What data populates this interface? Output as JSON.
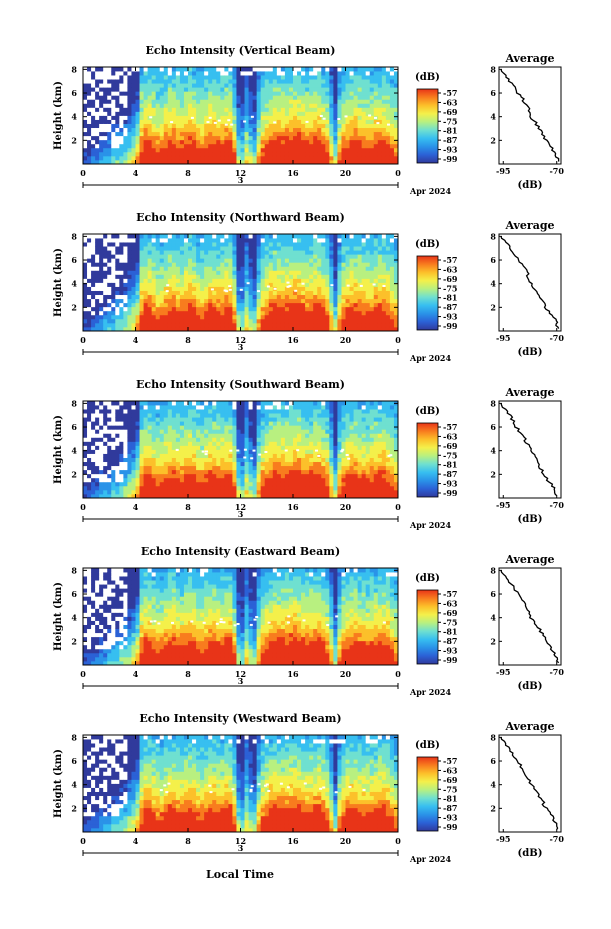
{
  "figure": {
    "xlabel": "Local Time",
    "date_label": "Apr 2024",
    "day_label": "3",
    "colorbar_unit": "(dB)",
    "colorbar_ticks": [
      "-57",
      "-63",
      "-69",
      "-75",
      "-81",
      "-87",
      "-93",
      "-99"
    ],
    "avg_title": "Average",
    "avg_xlabel": "(dB)",
    "colormap": [
      "#303a9c",
      "#2b61d6",
      "#2a93e8",
      "#37bff0",
      "#6fe0d0",
      "#b8f080",
      "#f4f04a",
      "#fcc02a",
      "#f87c1e",
      "#e83418"
    ]
  },
  "chart_data": [
    {
      "type": "heatmap",
      "title": "Echo Intensity (Vertical Beam)",
      "ylabel": "Height (km)",
      "x_ticks": [
        "0",
        "4",
        "8",
        "12",
        "16",
        "20",
        "0"
      ],
      "y_ticks": [
        "2",
        "4",
        "6",
        "8"
      ],
      "xlim": [
        0,
        24
      ],
      "ylim": [
        0,
        8.2
      ],
      "z_range": [
        -99,
        -57
      ],
      "average_profile": {
        "x_ticks": [
          "-95",
          "-70"
        ],
        "y_ticks": [
          "2",
          "4",
          "6",
          "8"
        ],
        "xlim": [
          -97,
          -68
        ],
        "ylim": [
          0,
          8.2
        ],
        "height": [
          0.2,
          1,
          2,
          3,
          4,
          5,
          6,
          7,
          8
        ],
        "db": [
          -69,
          -71,
          -75,
          -78,
          -82,
          -84,
          -88,
          -92,
          -96
        ]
      }
    },
    {
      "type": "heatmap",
      "title": "Echo Intensity (Northward Beam)",
      "ylabel": "Height (km)",
      "x_ticks": [
        "0",
        "4",
        "8",
        "12",
        "16",
        "20",
        "0"
      ],
      "y_ticks": [
        "2",
        "4",
        "6",
        "8"
      ],
      "xlim": [
        0,
        24
      ],
      "ylim": [
        0,
        8.2
      ],
      "z_range": [
        -99,
        -57
      ],
      "average_profile": {
        "x_ticks": [
          "-95",
          "-70"
        ],
        "y_ticks": [
          "2",
          "4",
          "6",
          "8"
        ],
        "xlim": [
          -97,
          -68
        ],
        "ylim": [
          0,
          8.2
        ],
        "height": [
          0.2,
          1,
          2,
          3,
          4,
          5,
          6,
          7,
          8
        ],
        "db": [
          -69,
          -71,
          -75,
          -78,
          -82,
          -84,
          -88,
          -92,
          -96
        ]
      }
    },
    {
      "type": "heatmap",
      "title": "Echo Intensity (Southward Beam)",
      "ylabel": "Height (km)",
      "x_ticks": [
        "0",
        "4",
        "8",
        "12",
        "16",
        "20",
        "0"
      ],
      "y_ticks": [
        "2",
        "4",
        "6",
        "8"
      ],
      "xlim": [
        0,
        24
      ],
      "ylim": [
        0,
        8.2
      ],
      "z_range": [
        -99,
        -57
      ],
      "average_profile": {
        "x_ticks": [
          "-95",
          "-70"
        ],
        "y_ticks": [
          "2",
          "4",
          "6",
          "8"
        ],
        "xlim": [
          -97,
          -68
        ],
        "ylim": [
          0,
          8.2
        ],
        "height": [
          0.2,
          1,
          2,
          3,
          4,
          5,
          6,
          7,
          8
        ],
        "db": [
          -70,
          -72,
          -76,
          -79,
          -82,
          -85,
          -89,
          -92,
          -96
        ]
      }
    },
    {
      "type": "heatmap",
      "title": "Echo Intensity (Eastward Beam)",
      "ylabel": "Height (km)",
      "x_ticks": [
        "0",
        "4",
        "8",
        "12",
        "16",
        "20",
        "0"
      ],
      "y_ticks": [
        "2",
        "4",
        "6",
        "8"
      ],
      "xlim": [
        0,
        24
      ],
      "ylim": [
        0,
        8.2
      ],
      "z_range": [
        -99,
        -57
      ],
      "average_profile": {
        "x_ticks": [
          "-95",
          "-70"
        ],
        "y_ticks": [
          "2",
          "4",
          "6",
          "8"
        ],
        "xlim": [
          -97,
          -68
        ],
        "ylim": [
          0,
          8.2
        ],
        "height": [
          0.2,
          1,
          2,
          3,
          4,
          5,
          6,
          7,
          8
        ],
        "db": [
          -69,
          -71,
          -75,
          -78,
          -82,
          -84,
          -88,
          -92,
          -96
        ]
      }
    },
    {
      "type": "heatmap",
      "title": "Echo Intensity (Westward Beam)",
      "ylabel": "Height (km)",
      "x_ticks": [
        "0",
        "4",
        "8",
        "12",
        "16",
        "20",
        "0"
      ],
      "y_ticks": [
        "2",
        "4",
        "6",
        "8"
      ],
      "xlim": [
        0,
        24
      ],
      "ylim": [
        0,
        8.2
      ],
      "z_range": [
        -99,
        -57
      ],
      "average_profile": {
        "x_ticks": [
          "-95",
          "-70"
        ],
        "y_ticks": [
          "2",
          "4",
          "6",
          "8"
        ],
        "xlim": [
          -97,
          -68
        ],
        "ylim": [
          0,
          8.2
        ],
        "height": [
          0.2,
          1,
          2,
          3,
          4,
          5,
          6,
          7,
          8
        ],
        "db": [
          -70,
          -71,
          -75,
          -78,
          -82,
          -85,
          -88,
          -92,
          -96
        ]
      }
    }
  ]
}
